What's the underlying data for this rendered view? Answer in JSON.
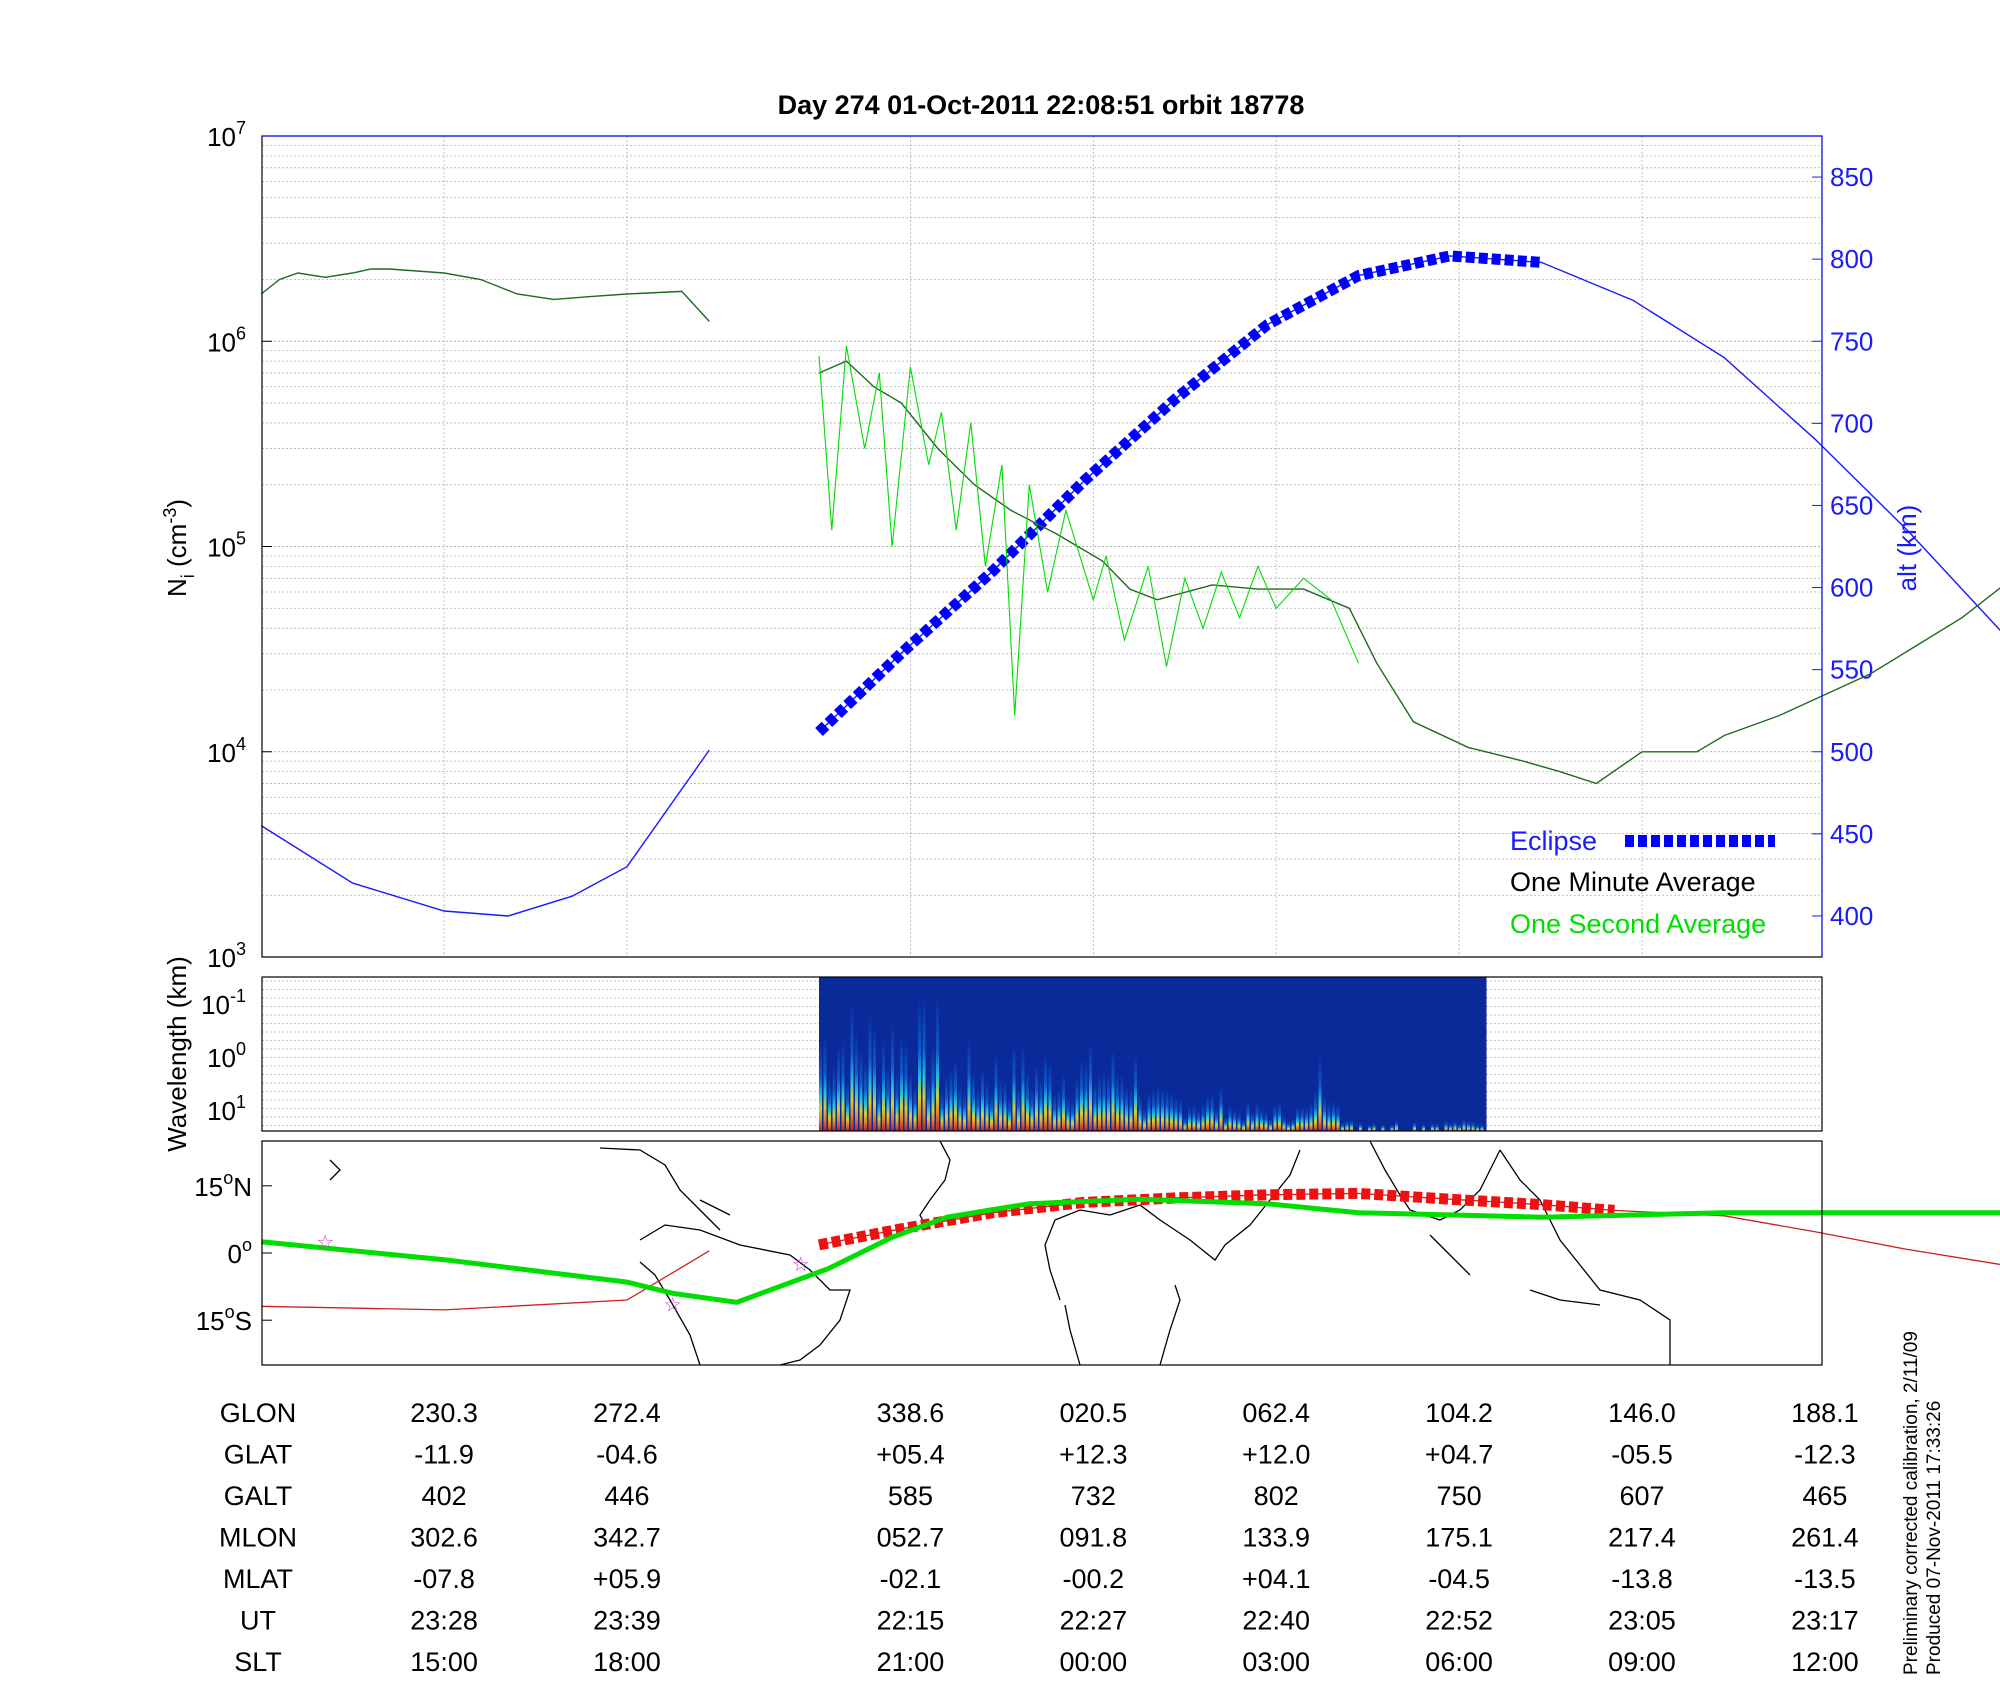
{
  "chart_data": [
    {
      "type": "line",
      "title": "Day 274  01-Oct-2011 22:08:51   orbit 18778",
      "ylabel": "N",
      "ylabel_subscript": "i",
      "ylabel_unit": "(cm",
      "ylabel_unit_sup": "-3",
      "ylabel_close": ")",
      "y_scale": "log",
      "ylim": [
        1000,
        10000000
      ],
      "y_ticks": [
        {
          "base": "10",
          "exp": "3",
          "value": 1000
        },
        {
          "base": "10",
          "exp": "4",
          "value": 10000
        },
        {
          "base": "10",
          "exp": "5",
          "value": 100000
        },
        {
          "base": "10",
          "exp": "6",
          "value": 1000000
        },
        {
          "base": "10",
          "exp": "7",
          "value": 10000000
        }
      ],
      "y2label": "alt (km)",
      "y2lim": [
        375,
        875
      ],
      "y2_ticks": [
        "400",
        "450",
        "500",
        "550",
        "600",
        "650",
        "700",
        "750",
        "800",
        "850"
      ],
      "x_ticks_slt": [
        "15:00",
        "18:00",
        "21:00",
        "00:00",
        "03:00",
        "06:00",
        "09:00",
        "12:00"
      ],
      "grid": true,
      "legend": [
        {
          "label": "Eclipse",
          "color": "#0000ff",
          "style": "dashed-thick"
        },
        {
          "label": "One Minute Average",
          "color": "#000000",
          "style": "line"
        },
        {
          "label": "One Second Average",
          "color": "#00dd00",
          "style": "line"
        }
      ],
      "legend_position": "bottom-right",
      "series": [
        {
          "name": "One Minute Average",
          "color": "#1f6b1f",
          "segments": [
            [
              [
                0,
                1700000
              ],
              [
                0.1,
                2000000
              ],
              [
                0.2,
                2150000
              ],
              [
                0.35,
                2050000
              ],
              [
                0.5,
                2150000
              ],
              [
                0.6,
                2250000
              ],
              [
                0.7,
                2250000
              ],
              [
                0.85,
                2200000
              ],
              [
                1.0,
                2150000
              ],
              [
                1.2,
                2000000
              ],
              [
                1.4,
                1700000
              ],
              [
                1.6,
                1600000
              ],
              [
                1.8,
                1650000
              ],
              [
                2.0,
                1700000
              ],
              [
                2.3,
                1750000
              ],
              [
                2.45,
                1250000
              ]
            ],
            [
              [
                3.05,
                700000
              ],
              [
                3.2,
                800000
              ],
              [
                3.35,
                600000
              ],
              [
                3.5,
                500000
              ],
              [
                3.7,
                300000
              ],
              [
                3.9,
                200000
              ],
              [
                4.1,
                150000
              ],
              [
                4.35,
                115000
              ],
              [
                4.6,
                85000
              ],
              [
                4.75,
                62000
              ],
              [
                4.9,
                55000
              ],
              [
                5.2,
                65000
              ],
              [
                5.45,
                62000
              ],
              [
                5.7,
                62000
              ],
              [
                5.95,
                50000
              ],
              [
                6.1,
                27000
              ],
              [
                6.3,
                14000
              ],
              [
                6.6,
                10500
              ],
              [
                6.9,
                9000
              ],
              [
                7.1,
                8000
              ],
              [
                7.3,
                7000
              ],
              [
                7.55,
                10000
              ],
              [
                7.85,
                10000
              ],
              [
                8.0,
                12000
              ],
              [
                8.3,
                15000
              ],
              [
                8.8,
                24000
              ],
              [
                9.3,
                45000
              ],
              [
                9.8,
                100000
              ],
              [
                10.2,
                180000
              ],
              [
                10.6,
                350000
              ],
              [
                10.9,
                700000
              ],
              [
                11.2,
                1200000
              ],
              [
                11.45,
                1550000
              ],
              [
                11.6,
                1650000
              ]
            ]
          ]
        },
        {
          "name": "One Second Average",
          "color": "#00dd00",
          "segments": [
            [
              [
                3.05,
                850000
              ],
              [
                3.12,
                120000
              ],
              [
                3.2,
                950000
              ],
              [
                3.3,
                300000
              ],
              [
                3.38,
                700000
              ],
              [
                3.45,
                100000
              ],
              [
                3.55,
                750000
              ],
              [
                3.65,
                250000
              ],
              [
                3.72,
                450000
              ],
              [
                3.8,
                120000
              ],
              [
                3.88,
                400000
              ],
              [
                3.96,
                80000
              ],
              [
                4.05,
                250000
              ],
              [
                4.12,
                15000
              ],
              [
                4.2,
                200000
              ],
              [
                4.3,
                60000
              ],
              [
                4.4,
                150000
              ],
              [
                4.55,
                55000
              ],
              [
                4.62,
                90000
              ],
              [
                4.72,
                35000
              ],
              [
                4.85,
                80000
              ],
              [
                4.95,
                26000
              ],
              [
                5.05,
                70000
              ],
              [
                5.15,
                40000
              ],
              [
                5.25,
                75000
              ],
              [
                5.35,
                45000
              ],
              [
                5.45,
                80000
              ],
              [
                5.55,
                50000
              ],
              [
                5.7,
                70000
              ],
              [
                5.85,
                55000
              ],
              [
                6.0,
                27000
              ]
            ]
          ]
        }
      ],
      "altitude_series": {
        "name": "alt",
        "color": "#1a1aff",
        "segments": [
          [
            [
              0,
              455
            ],
            [
              0.5,
              420
            ],
            [
              1.0,
              403
            ],
            [
              1.35,
              400
            ],
            [
              1.7,
              412
            ],
            [
              2.0,
              430
            ],
            [
              2.45,
              501
            ]
          ],
          [
            [
              3.05,
              512
            ],
            [
              3.5,
              560
            ],
            [
              4.0,
              610
            ],
            [
              4.5,
              665
            ],
            [
              5.0,
              715
            ],
            [
              5.5,
              760
            ],
            [
              6.0,
              790
            ],
            [
              6.5,
              802
            ],
            [
              7.0,
              798
            ],
            [
              7.5,
              775
            ],
            [
              8.0,
              740
            ],
            [
              8.5,
              690
            ],
            [
              9.0,
              635
            ],
            [
              9.5,
              575
            ],
            [
              10.0,
              520
            ],
            [
              10.5,
              485
            ],
            [
              11.0,
              465
            ],
            [
              11.5,
              455
            ]
          ]
        ],
        "eclipse_range": [
          3.05,
          7.4
        ]
      }
    },
    {
      "type": "heatmap",
      "ylabel": "Wavelength (km)",
      "y_scale": "log",
      "y_ticks": [
        {
          "base": "10",
          "exp": "-1"
        },
        {
          "base": "10",
          "exp": "0"
        },
        {
          "base": "10",
          "exp": "1"
        }
      ],
      "x_extent": [
        3.05,
        6.7
      ]
    },
    {
      "type": "line",
      "map": true,
      "y_ticks": [
        {
          "deg": "15",
          "sym": "o",
          "hem": "N",
          "value": 15
        },
        {
          "deg": "0",
          "sym": "o",
          "hem": "",
          "value": 0
        },
        {
          "deg": "15",
          "sym": "o",
          "hem": "S",
          "value": -15
        }
      ],
      "ylim": [
        -25,
        25
      ],
      "series": [
        {
          "name": "magnetic track",
          "color": "#00dd00",
          "points": [
            [
              0,
              2.5
            ],
            [
              1.0,
              -1.5
            ],
            [
              2.0,
              -6.5
            ],
            [
              2.25,
              -9
            ],
            [
              2.6,
              -11
            ],
            [
              3.1,
              -3.5
            ],
            [
              3.45,
              3.5
            ],
            [
              3.75,
              8
            ],
            [
              4.2,
              11
            ],
            [
              4.8,
              12
            ],
            [
              5.5,
              11
            ],
            [
              6.0,
              9
            ],
            [
              7.0,
              8
            ],
            [
              8.0,
              9
            ],
            [
              9.5,
              9
            ],
            [
              10.5,
              8
            ],
            [
              11.5,
              2.5
            ]
          ]
        },
        {
          "name": "geographic track",
          "color": "#cc2222",
          "points": [
            [
              0,
              -11.9
            ],
            [
              1.0,
              -12.7
            ],
            [
              2.0,
              -10.5
            ],
            [
              2.45,
              0.5
            ]
          ],
          "points2": [
            [
              3.05,
              1.8
            ],
            [
              3.5,
              5.4
            ],
            [
              4.0,
              9
            ],
            [
              4.5,
              11.3
            ],
            [
              5.0,
              12.3
            ],
            [
              5.5,
              13
            ],
            [
              6.0,
              13.3
            ],
            [
              6.5,
              12
            ],
            [
              7.0,
              10.8
            ],
            [
              7.4,
              9.5
            ],
            [
              8.0,
              8.3
            ],
            [
              8.5,
              4.7
            ],
            [
              9.0,
              0.8
            ],
            [
              9.5,
              -2.5
            ],
            [
              10.0,
              -5.5
            ],
            [
              10.5,
              -8
            ],
            [
              11.0,
              -10.2
            ],
            [
              11.5,
              -12.3
            ]
          ]
        }
      ],
      "stars": [
        [
          0.35,
          2.5
        ],
        [
          2.25,
          -11.5
        ],
        [
          2.95,
          -2.5
        ],
        [
          10.05,
          14
        ],
        [
          10.65,
          10
        ]
      ]
    }
  ],
  "table": {
    "x_positions": [
      1,
      2,
      3.55,
      4.55,
      5.55,
      6.55,
      7.55,
      8.55
    ],
    "rows": [
      {
        "label": "GLON",
        "values": [
          "230.3",
          "272.4",
          "338.6",
          "020.5",
          "062.4",
          "104.2",
          "146.0",
          "188.1"
        ]
      },
      {
        "label": "GLAT",
        "values": [
          "-11.9",
          "-04.6",
          "+05.4",
          "+12.3",
          "+12.0",
          "+04.7",
          "-05.5",
          "-12.3"
        ]
      },
      {
        "label": "GALT",
        "values": [
          "402",
          "446",
          "585",
          "732",
          "802",
          "750",
          "607",
          "465"
        ]
      },
      {
        "label": "MLON",
        "values": [
          "302.6",
          "342.7",
          "052.7",
          "091.8",
          "133.9",
          "175.1",
          "217.4",
          "261.4"
        ]
      },
      {
        "label": "MLAT",
        "values": [
          "-07.8",
          "+05.9",
          "-02.1",
          "-00.2",
          "+04.1",
          "-04.5",
          "-13.8",
          "-13.5"
        ]
      },
      {
        "label": "UT",
        "values": [
          "23:28",
          "23:39",
          "22:15",
          "22:27",
          "22:40",
          "22:52",
          "23:05",
          "23:17"
        ]
      },
      {
        "label": "SLT",
        "values": [
          "15:00",
          "18:00",
          "21:00",
          "00:00",
          "03:00",
          "06:00",
          "09:00",
          "12:00"
        ]
      }
    ]
  },
  "footnote": {
    "line1": "Preliminary corrected calibration, 2/11/09",
    "line2": "Produced 07-Nov-2011 17:33:26"
  },
  "colors": {
    "altitude": "#1a1aff",
    "eclipse": "#0000ff",
    "minute_avg": "#000000",
    "second_avg": "#00dd00",
    "geo_track": "#cc2222",
    "mag_track": "#00dd00",
    "star": "#cc44cc"
  }
}
